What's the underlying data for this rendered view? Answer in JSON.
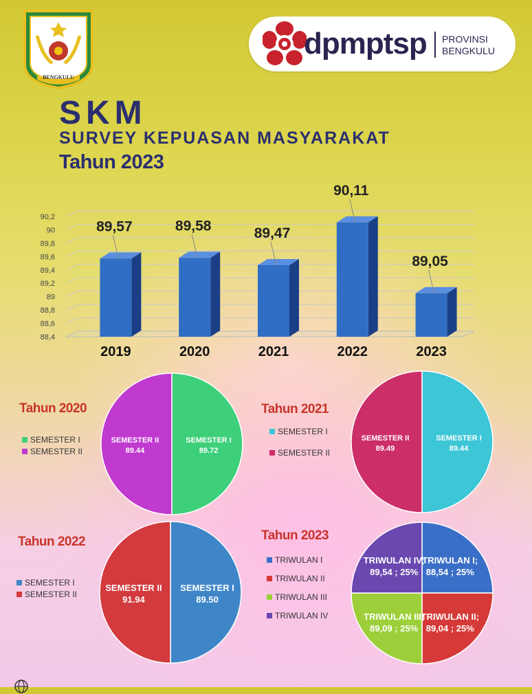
{
  "header": {
    "brand_name": "dpmptsp",
    "brand_region_line1": "PROVINSI",
    "brand_region_line2": "BENGKULU",
    "emblem_text": "BENGKULU",
    "title": "SKM",
    "subtitle": "SURVEY KEPUASAN MASYARAKAT",
    "year_label": "Tahun 2023"
  },
  "colors": {
    "bar_blue": "#2f6ec4",
    "title_navy": "#2b2f6f",
    "pie_title_red": "#c8342a"
  },
  "chart_data": [
    {
      "type": "bar",
      "categories": [
        "2019",
        "2020",
        "2021",
        "2022",
        "2023"
      ],
      "values": [
        89.57,
        89.58,
        89.47,
        90.11,
        89.05
      ],
      "data_labels": [
        "89,57",
        "89,58",
        "89,47",
        "90,11",
        "89,05"
      ],
      "ytick_labels": [
        "88,4",
        "88,6",
        "88,8",
        "89",
        "89,2",
        "89,4",
        "89,6",
        "89,8",
        "90",
        "90,2"
      ],
      "yticks": [
        88.4,
        88.6,
        88.8,
        89.0,
        89.2,
        89.4,
        89.6,
        89.8,
        90.0,
        90.2
      ],
      "ylim": [
        88.4,
        90.2
      ],
      "grid": true
    },
    {
      "type": "pie",
      "title": "Tahun 2020",
      "legend": [
        "SEMESTER I",
        "SEMESTER II"
      ],
      "slices": [
        {
          "label": "SEMESTER I",
          "value_text": "89.72",
          "value": 89.72,
          "color": "#3ecf7a"
        },
        {
          "label": "SEMESTER II",
          "value_text": "89.44",
          "value": 89.44,
          "color": "#c03ad0"
        }
      ]
    },
    {
      "type": "pie",
      "title": "Tahun 2021",
      "legend": [
        "SEMESTER I",
        "SEMESTER II"
      ],
      "slices": [
        {
          "label": "SEMESTER I",
          "value_text": "89.44",
          "value": 89.44,
          "color": "#3cc6d6"
        },
        {
          "label": "SEMESTER II",
          "value_text": "89.49",
          "value": 89.49,
          "color": "#cc2e6a"
        }
      ]
    },
    {
      "type": "pie",
      "title": "Tahun 2022",
      "legend": [
        "SEMESTER  I",
        "SEMESTER  II"
      ],
      "slices": [
        {
          "label": "SEMESTER  I",
          "value_text": "89.50",
          "value": 89.5,
          "color": "#3f86c8"
        },
        {
          "label": "SEMESTER  II",
          "value_text": "91.94",
          "value": 91.94,
          "color": "#d23a3e"
        }
      ]
    },
    {
      "type": "pie",
      "title": "Tahun 2023",
      "legend": [
        "TRIWULAN I",
        "TRIWULAN II",
        "TRIWULAN III",
        "TRIWULAN IV"
      ],
      "slices": [
        {
          "label": "TRIWULAN I;",
          "value_text": "88,54 ; 25%",
          "value": 25,
          "color": "#3a6fc8"
        },
        {
          "label": "TRIWULAN II;",
          "value_text": "89,04 ; 25%",
          "value": 25,
          "color": "#d63a38"
        },
        {
          "label": "TRIWULAN III;",
          "value_text": "89,09 ; 25%",
          "value": 25,
          "color": "#9ccf3a"
        },
        {
          "label": "TRIWULAN IV;",
          "value_text": "89,54 ; 25%",
          "value": 25,
          "color": "#6a48b0"
        }
      ]
    }
  ]
}
